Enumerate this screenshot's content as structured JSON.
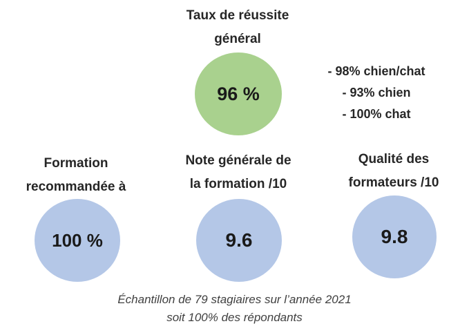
{
  "success": {
    "label_line1": "Taux de réussite",
    "label_line2": "général",
    "value": "96 %",
    "details": [
      "- 98% chien/chat",
      "- 93% chien",
      "- 100% chat"
    ]
  },
  "recommended": {
    "label_line1": "Formation",
    "label_line2": "recommandée à",
    "value": "100 %"
  },
  "general_rating": {
    "label_line1": "Note générale de",
    "label_line2": "la formation /10",
    "value": "9.6"
  },
  "trainers_quality": {
    "label_line1": "Qualité des",
    "label_line2": "formateurs /10",
    "value": "9.8"
  },
  "footnote": {
    "line1": "Échantillon de 79 stagiaires sur l’année 2021",
    "line2": "soit 100% des répondants"
  },
  "colors": {
    "success_circle": "#a9d18e",
    "stat_circle": "#b4c7e7"
  }
}
